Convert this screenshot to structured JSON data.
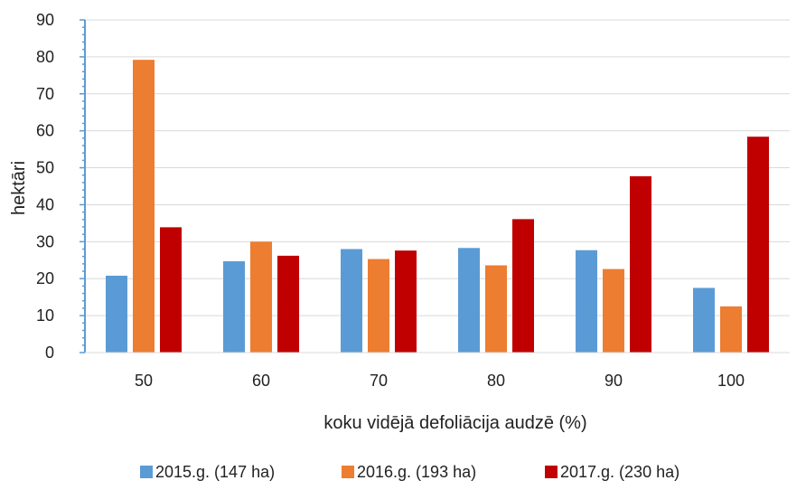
{
  "chart_data": {
    "type": "bar",
    "title": "",
    "xlabel": "koku vidējā defoliācija audzē (%)",
    "ylabel": "hektāri",
    "categories": [
      "50",
      "60",
      "70",
      "80",
      "90",
      "100"
    ],
    "series": [
      {
        "name": "2015.g. (147 ha)",
        "color": "#5b9bd5",
        "values": [
          20.8,
          24.7,
          28.0,
          28.3,
          27.7,
          17.5
        ]
      },
      {
        "name": "2016.g. (193 ha)",
        "color": "#ed7d31",
        "values": [
          79.2,
          30.0,
          25.3,
          23.6,
          22.6,
          12.5
        ]
      },
      {
        "name": "2017.g. (230 ha)",
        "color": "#c00000",
        "values": [
          33.9,
          26.2,
          27.6,
          36.1,
          47.7,
          58.4
        ]
      }
    ],
    "ylim": [
      0,
      90
    ],
    "yticks": [
      0,
      10,
      20,
      30,
      40,
      50,
      60,
      70,
      80,
      90
    ],
    "grid": true,
    "legend_position": "bottom"
  }
}
